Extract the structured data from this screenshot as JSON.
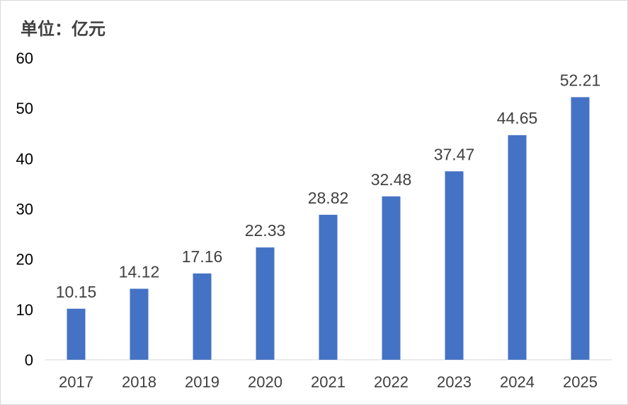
{
  "unit_label": "单位：亿元",
  "chart_data": {
    "type": "bar",
    "title": "",
    "xlabel": "",
    "ylabel": "单位：亿元",
    "categories": [
      "2017",
      "2018",
      "2019",
      "2020",
      "2021",
      "2022",
      "2023",
      "2024",
      "2025"
    ],
    "values": [
      10.15,
      14.12,
      17.16,
      22.33,
      28.82,
      32.48,
      37.47,
      44.65,
      52.21
    ],
    "data_labels": [
      "10.15",
      "14.12",
      "17.16",
      "22.33",
      "28.82",
      "32.48",
      "37.47",
      "44.65",
      "52.21"
    ],
    "ylim": [
      0,
      60
    ],
    "yticks": [
      "0",
      "10",
      "20",
      "30",
      "40",
      "50",
      "60"
    ],
    "grid": false,
    "legend": "none",
    "bar_color": "#4472c4"
  }
}
